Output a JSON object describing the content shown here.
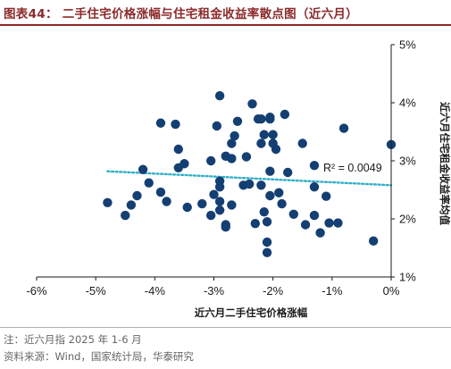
{
  "figure": {
    "title": "图表44：  二手住宅价格涨幅与住宅租金收益率散点图（近六月）"
  },
  "footer": {
    "note": "注：近六月指 2025 年 1-6 月",
    "source": "资料来源：Wind，国家统计局，华泰研究"
  },
  "colors": {
    "title": "#8b2a2a",
    "point": "#143f73",
    "trendline": "#2fb0c8",
    "axis": "#1a1a1a"
  },
  "chart_data": {
    "type": "scatter",
    "xlabel": "近六月二手住宅价格涨幅",
    "ylabel": "近六月住宅租金收益率均值",
    "xlim": [
      -6,
      0
    ],
    "ylim": [
      1,
      5
    ],
    "x_unit": "%",
    "y_unit": "%",
    "x_ticks": [
      "-6%",
      "-5%",
      "-4%",
      "-3%",
      "-2%",
      "-1%",
      "0%"
    ],
    "y_ticks": [
      "1%",
      "2%",
      "3%",
      "4%",
      "5%"
    ],
    "y_axis_side": "right",
    "grid": false,
    "trendline": {
      "type": "linear",
      "start": [
        -4.8,
        2.82
      ],
      "end": [
        0,
        2.58
      ],
      "r_squared_label": "R² = 0.0049"
    },
    "points": [
      [
        -4.8,
        2.28
      ],
      [
        -4.4,
        2.24
      ],
      [
        -4.5,
        2.06
      ],
      [
        -4.3,
        2.4
      ],
      [
        -4.2,
        2.85
      ],
      [
        -4.1,
        2.62
      ],
      [
        -3.9,
        2.46
      ],
      [
        -3.8,
        2.3
      ],
      [
        -3.9,
        3.65
      ],
      [
        -3.65,
        3.63
      ],
      [
        -3.6,
        3.2
      ],
      [
        -3.6,
        2.88
      ],
      [
        -3.5,
        2.95
      ],
      [
        -3.45,
        2.2
      ],
      [
        -3.2,
        2.26
      ],
      [
        -3.05,
        2.06
      ],
      [
        -3.05,
        3.0
      ],
      [
        -3.0,
        2.42
      ],
      [
        -2.95,
        3.6
      ],
      [
        -2.9,
        4.12
      ],
      [
        -2.9,
        2.65
      ],
      [
        -2.9,
        2.55
      ],
      [
        -2.9,
        2.3
      ],
      [
        -2.9,
        2.15
      ],
      [
        -2.8,
        1.86
      ],
      [
        -2.8,
        1.9
      ],
      [
        -2.8,
        3.08
      ],
      [
        -2.7,
        3.04
      ],
      [
        -2.7,
        3.3
      ],
      [
        -2.7,
        2.24
      ],
      [
        -2.65,
        3.43
      ],
      [
        -2.6,
        3.68
      ],
      [
        -2.5,
        2.58
      ],
      [
        -2.45,
        3.07
      ],
      [
        -2.4,
        2.6
      ],
      [
        -2.35,
        3.98
      ],
      [
        -2.3,
        1.92
      ],
      [
        -2.25,
        3.72
      ],
      [
        -2.2,
        3.72
      ],
      [
        -2.2,
        3.3
      ],
      [
        -2.15,
        3.45
      ],
      [
        -2.2,
        2.58
      ],
      [
        -2.15,
        2.12
      ],
      [
        -2.1,
        1.6
      ],
      [
        -2.1,
        1.95
      ],
      [
        -2.1,
        1.42
      ],
      [
        -2.05,
        2.82
      ],
      [
        -2.05,
        3.72
      ],
      [
        -2.05,
        3.75
      ],
      [
        -2.05,
        2.4
      ],
      [
        -2.0,
        3.3
      ],
      [
        -2.0,
        3.45
      ],
      [
        -1.95,
        3.2
      ],
      [
        -1.9,
        2.45
      ],
      [
        -1.85,
        2.26
      ],
      [
        -1.8,
        3.8
      ],
      [
        -1.75,
        2.8
      ],
      [
        -1.65,
        2.08
      ],
      [
        -1.5,
        3.3
      ],
      [
        -1.45,
        1.9
      ],
      [
        -1.3,
        2.92
      ],
      [
        -1.3,
        2.55
      ],
      [
        -1.3,
        2.06
      ],
      [
        -1.2,
        1.76
      ],
      [
        -1.1,
        2.39
      ],
      [
        -1.05,
        1.93
      ],
      [
        -0.9,
        1.93
      ],
      [
        -0.8,
        3.56
      ],
      [
        -0.3,
        1.62
      ],
      [
        0,
        3.28
      ]
    ]
  }
}
